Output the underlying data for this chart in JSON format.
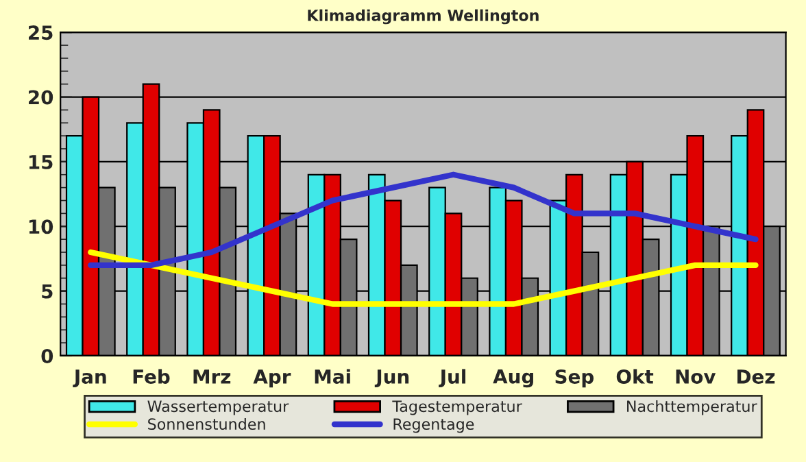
{
  "chart_data": {
    "type": "bar",
    "title": "Klimadiagramm Wellington",
    "categories": [
      "Jan",
      "Feb",
      "Mrz",
      "Apr",
      "Mai",
      "Jun",
      "Jul",
      "Aug",
      "Sep",
      "Okt",
      "Nov",
      "Dez"
    ],
    "series": [
      {
        "name": "Wassertemperatur",
        "color": "#40e8e8",
        "values": [
          17,
          18,
          18,
          17,
          14,
          14,
          13,
          13,
          12,
          14,
          14,
          17
        ]
      },
      {
        "name": "Tagestemperatur",
        "color": "#e00000",
        "values": [
          20,
          21,
          19,
          17,
          14,
          12,
          11,
          12,
          14,
          15,
          17,
          19
        ]
      },
      {
        "name": "Nachttemperatur",
        "color": "#707070",
        "values": [
          13,
          13,
          13,
          11,
          9,
          7,
          6,
          6,
          8,
          9,
          10,
          10
        ]
      },
      {
        "name": "Sonnenstunden",
        "type": "line",
        "color": "#ffff00",
        "values": [
          8,
          7,
          6,
          5,
          4,
          4,
          4,
          4,
          5,
          6,
          7,
          7
        ]
      },
      {
        "name": "Regentage",
        "type": "line",
        "color": "#3333cc",
        "values": [
          7,
          7,
          8,
          10,
          12,
          13,
          14,
          13,
          11,
          11,
          10,
          9
        ]
      }
    ],
    "ylim": [
      0,
      25
    ],
    "yticks": [
      0,
      5,
      10,
      15,
      20,
      25
    ],
    "grid": "y",
    "legend": "bottom",
    "marker": "none"
  }
}
